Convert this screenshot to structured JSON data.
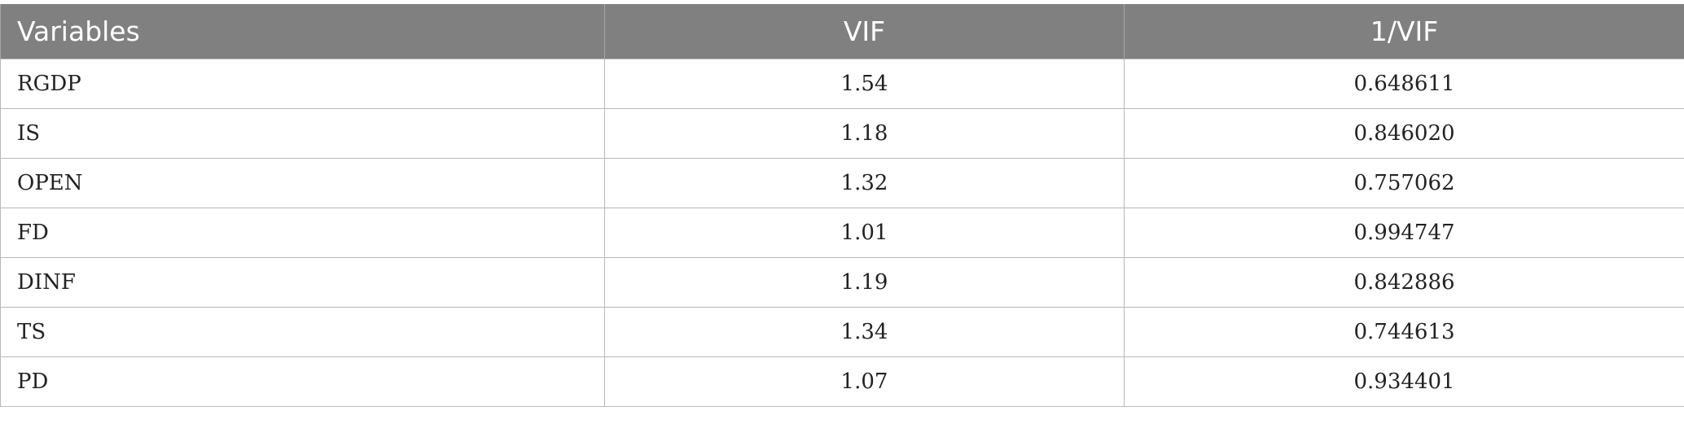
{
  "table": {
    "headers": [
      "Variables",
      "VIF",
      "1/VIF"
    ],
    "rows": [
      {
        "variable": "RGDP",
        "vif": "1.54",
        "inv_vif": "0.648611"
      },
      {
        "variable": "IS",
        "vif": "1.18",
        "inv_vif": "0.846020"
      },
      {
        "variable": "OPEN",
        "vif": "1.32",
        "inv_vif": "0.757062"
      },
      {
        "variable": "FD",
        "vif": "1.01",
        "inv_vif": "0.994747"
      },
      {
        "variable": "DINF",
        "vif": "1.19",
        "inv_vif": "0.842886"
      },
      {
        "variable": "TS",
        "vif": "1.34",
        "inv_vif": "0.744613"
      },
      {
        "variable": "PD",
        "vif": "1.07",
        "inv_vif": "0.934401"
      }
    ]
  },
  "colors": {
    "header_bg": "#808080",
    "header_text": "#ffffff",
    "border": "#b8b8b8"
  }
}
